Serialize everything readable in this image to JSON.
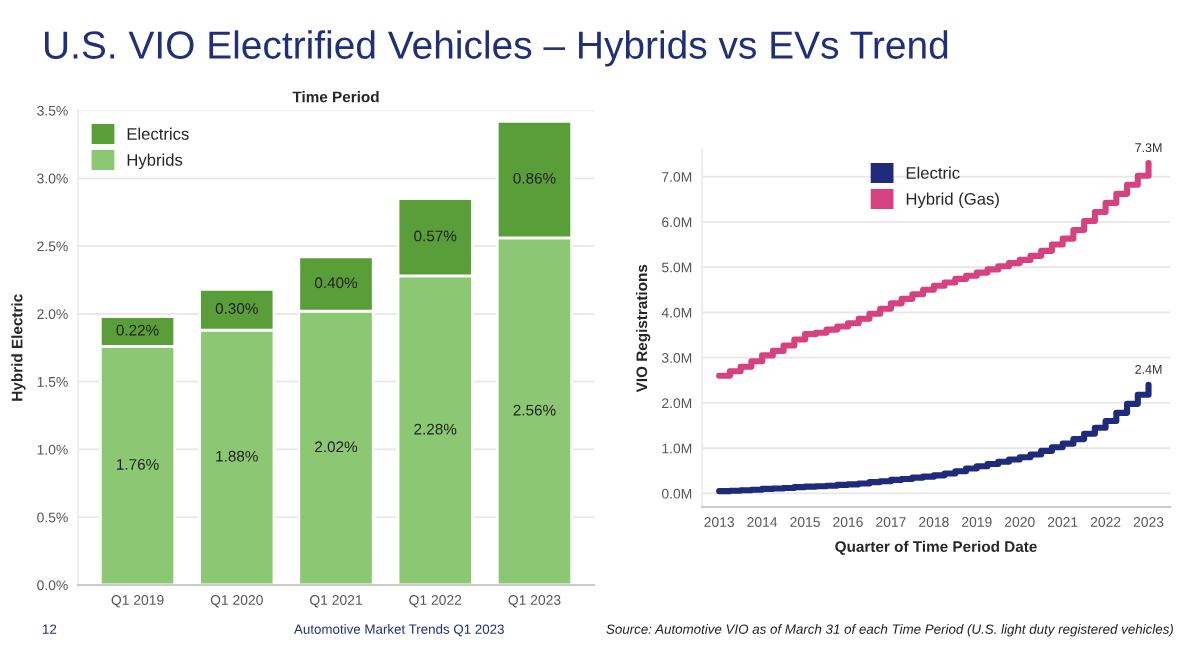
{
  "chart_data": [
    {
      "type": "bar",
      "title": "U.S. VIO Electrified Vehicles – Hybrids vs EVs Trend",
      "subtitle": "Time Period",
      "ylabel": "Hybrid Electric",
      "categories": [
        "Q1 2019",
        "Q1 2020",
        "Q1 2021",
        "Q1 2022",
        "Q1 2023"
      ],
      "stacked": true,
      "series": [
        {
          "name": "Hybrids",
          "color": "#8cc874",
          "values": [
            1.76,
            1.88,
            2.02,
            2.28,
            2.56
          ],
          "value_labels": [
            "1.76%",
            "1.88%",
            "2.02%",
            "2.28%",
            "2.56%"
          ]
        },
        {
          "name": "Electrics",
          "color": "#5a9e3a",
          "values": [
            0.22,
            0.3,
            0.4,
            0.57,
            0.86
          ],
          "value_labels": [
            "0.22%",
            "0.30%",
            "0.40%",
            "0.57%",
            "0.86%"
          ]
        }
      ],
      "ylim": [
        0,
        3.5
      ],
      "yticks": [
        {
          "value": 0,
          "label": "0.0%"
        },
        {
          "value": 0.5,
          "label": "0.5%"
        },
        {
          "value": 1,
          "label": "1.0%"
        },
        {
          "value": 1.5,
          "label": "1.5%"
        },
        {
          "value": 2,
          "label": "2.0%"
        },
        {
          "value": 2.5,
          "label": "2.5%"
        },
        {
          "value": 3,
          "label": "3.0%"
        },
        {
          "value": 3.5,
          "label": "3.5%"
        }
      ],
      "grid": "y",
      "legend": "top left",
      "annotations": [
        "12",
        "Automotive Market Trends Q1 2023"
      ]
    },
    {
      "type": "step",
      "xlabel": "Quarter of Time Period Date",
      "ylabel": "VIO Registrations",
      "x": [
        2013,
        2013.25,
        2013.5,
        2013.75,
        2014,
        2014.25,
        2014.5,
        2014.75,
        2015,
        2015.25,
        2015.5,
        2015.75,
        2016,
        2016.25,
        2016.5,
        2016.75,
        2017,
        2017.25,
        2017.5,
        2017.75,
        2018,
        2018.25,
        2018.5,
        2018.75,
        2019,
        2019.25,
        2019.5,
        2019.75,
        2020,
        2020.25,
        2020.5,
        2020.75,
        2021,
        2021.25,
        2021.5,
        2021.75,
        2022,
        2022.25,
        2022.5,
        2022.75,
        2023
      ],
      "series": [
        {
          "name": "Electric",
          "color": "#1f2a7a",
          "values": [
            0.05,
            0.06,
            0.07,
            0.08,
            0.1,
            0.11,
            0.12,
            0.14,
            0.15,
            0.16,
            0.17,
            0.19,
            0.2,
            0.22,
            0.25,
            0.27,
            0.3,
            0.32,
            0.35,
            0.37,
            0.4,
            0.44,
            0.49,
            0.55,
            0.6,
            0.65,
            0.7,
            0.75,
            0.8,
            0.86,
            0.94,
            1.02,
            1.1,
            1.2,
            1.32,
            1.45,
            1.6,
            1.78,
            1.98,
            2.18,
            2.4
          ]
        },
        {
          "name": "Hybrid (Gas)",
          "color": "#d6427f",
          "values": [
            2.6,
            2.7,
            2.8,
            2.92,
            3.05,
            3.15,
            3.27,
            3.4,
            3.52,
            3.55,
            3.62,
            3.69,
            3.76,
            3.86,
            3.97,
            4.08,
            4.2,
            4.3,
            4.4,
            4.5,
            4.59,
            4.66,
            4.74,
            4.81,
            4.88,
            4.95,
            5.02,
            5.09,
            5.16,
            5.25,
            5.36,
            5.5,
            5.63,
            5.82,
            6.02,
            6.22,
            6.42,
            6.62,
            6.82,
            7.02,
            7.3
          ]
        }
      ],
      "xlim": [
        2012.6,
        2023.5
      ],
      "xticks": [
        2013,
        2014,
        2015,
        2016,
        2017,
        2018,
        2019,
        2020,
        2021,
        2022,
        2023
      ],
      "ylim": [
        -0.3,
        7.6
      ],
      "yticks": [
        {
          "value": 0,
          "label": "0.0M"
        },
        {
          "value": 1,
          "label": "1.0M"
        },
        {
          "value": 2,
          "label": "2.0M"
        },
        {
          "value": 3,
          "label": "3.0M"
        },
        {
          "value": 4,
          "label": "4.0M"
        },
        {
          "value": 5,
          "label": "5.0M"
        },
        {
          "value": 6,
          "label": "6.0M"
        },
        {
          "value": 7,
          "label": "7.0M"
        }
      ],
      "grid": "y",
      "legend": "top",
      "annotations": [
        {
          "text": "7.3M",
          "x": 2023,
          "y": 7.3
        },
        {
          "text": "2.4M",
          "x": 2023,
          "y": 2.4
        },
        "Source: Automotive VIO as of March 31 of each Time Period (U.S. light duty registered vehicles)"
      ]
    }
  ]
}
